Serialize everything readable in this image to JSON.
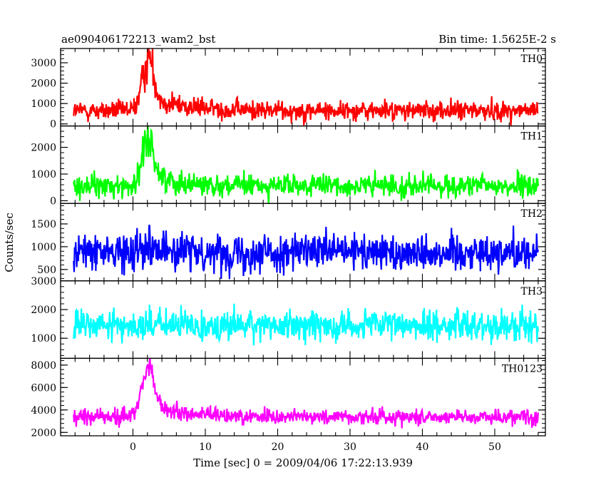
{
  "header": {
    "title": "ae090406172213_wam2_bst",
    "bin_time": "Bin time: 1.5625E-2 s"
  },
  "chart_data": {
    "type": "line",
    "title": "ae090406172213_wam2_bst",
    "xlabel": "Time [sec] 0 = 2009/04/06 17:22:13.939",
    "ylabel": "Counts/sec",
    "xlim": [
      -10,
      57
    ],
    "x_start": -8.2,
    "x_end": 56.0,
    "x_ticks": [
      0,
      10,
      20,
      30,
      40,
      50
    ],
    "x_tick_labels": [
      "0",
      "10",
      "20",
      "30",
      "40",
      "50"
    ],
    "grid": false,
    "panels": [
      {
        "name": "TH0",
        "color": "#ff0000",
        "ylim": [
          -100,
          3700
        ],
        "y_ticks": [
          0,
          1000,
          2000,
          3000
        ],
        "y_tick_labels": [
          "0",
          "1000",
          "2000",
          "3000"
        ],
        "baseline": 650,
        "baseline_late": 650,
        "noise": 380,
        "peak": [
          2.0,
          2200,
          0.8
        ],
        "tail_amp": 700,
        "tail_decay": 4.5
      },
      {
        "name": "TH1",
        "color": "#00ff00",
        "ylim": [
          -100,
          2800
        ],
        "y_ticks": [
          0,
          1000,
          2000
        ],
        "y_tick_labels": [
          "0",
          "1000",
          "2000"
        ],
        "baseline": 550,
        "baseline_late": 550,
        "noise": 330,
        "peak": [
          2.0,
          1500,
          0.8
        ],
        "tail_amp": 450,
        "tail_decay": 4.0
      },
      {
        "name": "TH2",
        "color": "#0000ff",
        "ylim": [
          250,
          1950
        ],
        "y_ticks": [
          500,
          1000,
          1500
        ],
        "y_tick_labels": [
          "500",
          "1000",
          "1500"
        ],
        "baseline": 880,
        "baseline_late": 880,
        "noise": 320,
        "peak": [
          2.0,
          200,
          1.2
        ],
        "tail_amp": 0,
        "tail_decay": 1
      },
      {
        "name": "TH3",
        "color": "#00ffff",
        "ylim": [
          300,
          3000
        ],
        "y_ticks": [
          1000,
          2000,
          3000
        ],
        "y_tick_labels": [
          "1000",
          "2000",
          "3000"
        ],
        "baseline": 1450,
        "baseline_late": 1450,
        "noise": 420,
        "peak": [
          2.0,
          0,
          1.0
        ],
        "tail_amp": 0,
        "tail_decay": 1
      },
      {
        "name": "TH0123",
        "color": "#ff00ff",
        "ylim": [
          1700,
          8600
        ],
        "y_ticks": [
          2000,
          4000,
          6000,
          8000
        ],
        "y_tick_labels": [
          "2000",
          "4000",
          "6000",
          "8000"
        ],
        "baseline": 3400,
        "baseline_late": 3400,
        "noise": 550,
        "peak": [
          2.0,
          3800,
          0.9
        ],
        "tail_amp": 900,
        "tail_decay": 4.5
      }
    ]
  }
}
